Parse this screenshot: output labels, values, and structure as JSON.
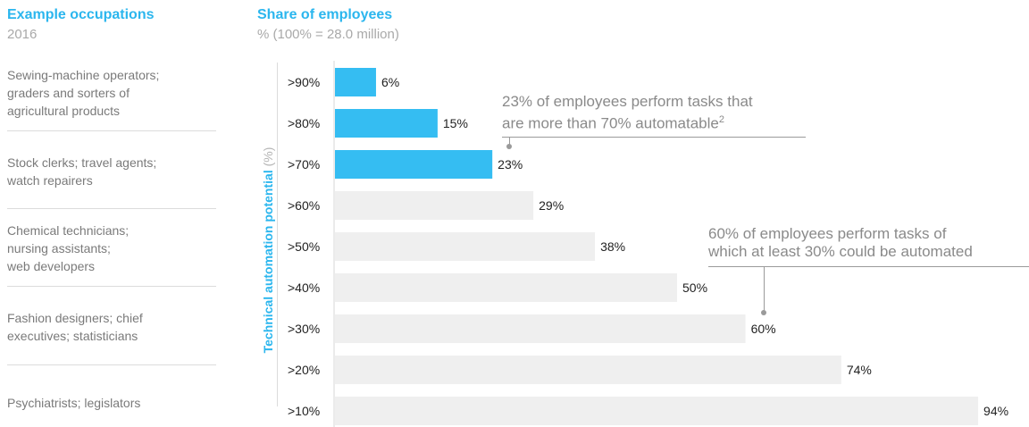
{
  "left_header": {
    "title": "Example occupations",
    "subtitle": "2016"
  },
  "right_header": {
    "title": "Share of employees",
    "subtitle": "% (100% = 28.0 million)"
  },
  "occupation_groups": [
    {
      "lines": [
        "Sewing-machine operators;",
        "graders and sorters of",
        "agricultural products"
      ]
    },
    {
      "lines": [
        "Stock clerks; travel agents;",
        "watch repairers"
      ]
    },
    {
      "lines": [
        "Chemical technicians;",
        "nursing assistants;",
        "web developers"
      ]
    },
    {
      "lines": [
        "Fashion designers; chief",
        "executives; statisticians"
      ]
    },
    {
      "lines": [
        "Psychiatrists; legislators"
      ]
    }
  ],
  "y_axis": {
    "label": "Technical automation potential",
    "unit": "(%)"
  },
  "annotations": [
    {
      "lines": [
        "23% of employees perform tasks that",
        "are more than 70% automatable"
      ],
      "footnote": "2"
    },
    {
      "lines": [
        "60% of employees perform tasks of",
        "which at least 30% could be automated"
      ]
    }
  ],
  "colors": {
    "highlight": "#35bdf2",
    "bar": "#efefef",
    "accent": "#2bb6ee",
    "muted": "#a9a9a9"
  },
  "chart_data": {
    "type": "bar",
    "orientation": "horizontal",
    "categories": [
      ">90%",
      ">80%",
      ">70%",
      ">60%",
      ">50%",
      ">40%",
      ">30%",
      ">20%",
      ">10%"
    ],
    "values": [
      6,
      15,
      23,
      29,
      38,
      50,
      60,
      74,
      94
    ],
    "value_labels": [
      "6%",
      "15%",
      "23%",
      "29%",
      "38%",
      "50%",
      "60%",
      "74%",
      "94%"
    ],
    "highlighted": [
      true,
      true,
      true,
      false,
      false,
      false,
      false,
      false,
      false
    ],
    "xlim": [
      0,
      100
    ],
    "title": "Share of employees",
    "ylabel": "Technical automation potential (%)",
    "grid": false,
    "legend": "none"
  }
}
